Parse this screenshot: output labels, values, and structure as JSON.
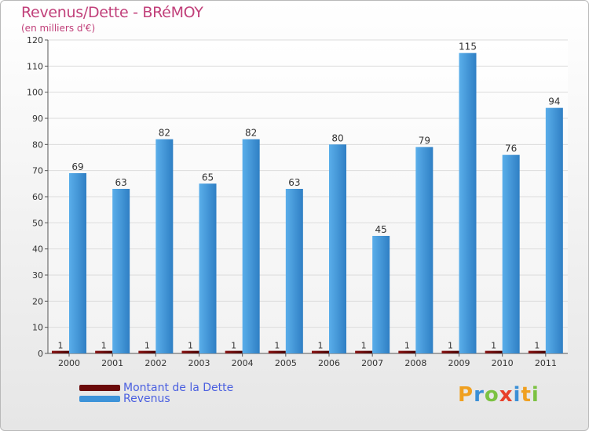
{
  "header": {
    "title": "Revenus/Dette - BRéMOY",
    "subtitle": "(en milliers d'€)"
  },
  "legend": {
    "items": [
      {
        "label": "Montant de la Dette",
        "color": "#6b0a0a"
      },
      {
        "label": "Revenus",
        "color": "#3d93d9"
      }
    ]
  },
  "logo": {
    "letters": [
      "P",
      "r",
      "o",
      "x",
      "i",
      "t",
      "i"
    ],
    "colors": [
      "#f0a020",
      "#3a8fd6",
      "#7cc242",
      "#e8402a",
      "#3a8fd6",
      "#f0a020",
      "#7cc242"
    ]
  },
  "chart_data": {
    "type": "bar",
    "categories": [
      "2000",
      "2001",
      "2002",
      "2003",
      "2004",
      "2005",
      "2006",
      "2007",
      "2008",
      "2009",
      "2010",
      "2011"
    ],
    "series": [
      {
        "name": "Montant de la Dette",
        "values": [
          1,
          1,
          1,
          1,
          1,
          1,
          1,
          1,
          1,
          1,
          1,
          1
        ],
        "color": "#6b0a0a"
      },
      {
        "name": "Revenus",
        "values": [
          69,
          63,
          82,
          65,
          82,
          63,
          80,
          45,
          79,
          115,
          76,
          94
        ],
        "color": "#3d93d9"
      }
    ],
    "ylim": [
      0,
      120
    ],
    "yticks": [
      0,
      10,
      20,
      30,
      40,
      50,
      60,
      70,
      80,
      90,
      100,
      110,
      120
    ],
    "grid": true,
    "title": "Revenus/Dette - BRéMOY",
    "ylabel": "(en milliers d'€)"
  }
}
